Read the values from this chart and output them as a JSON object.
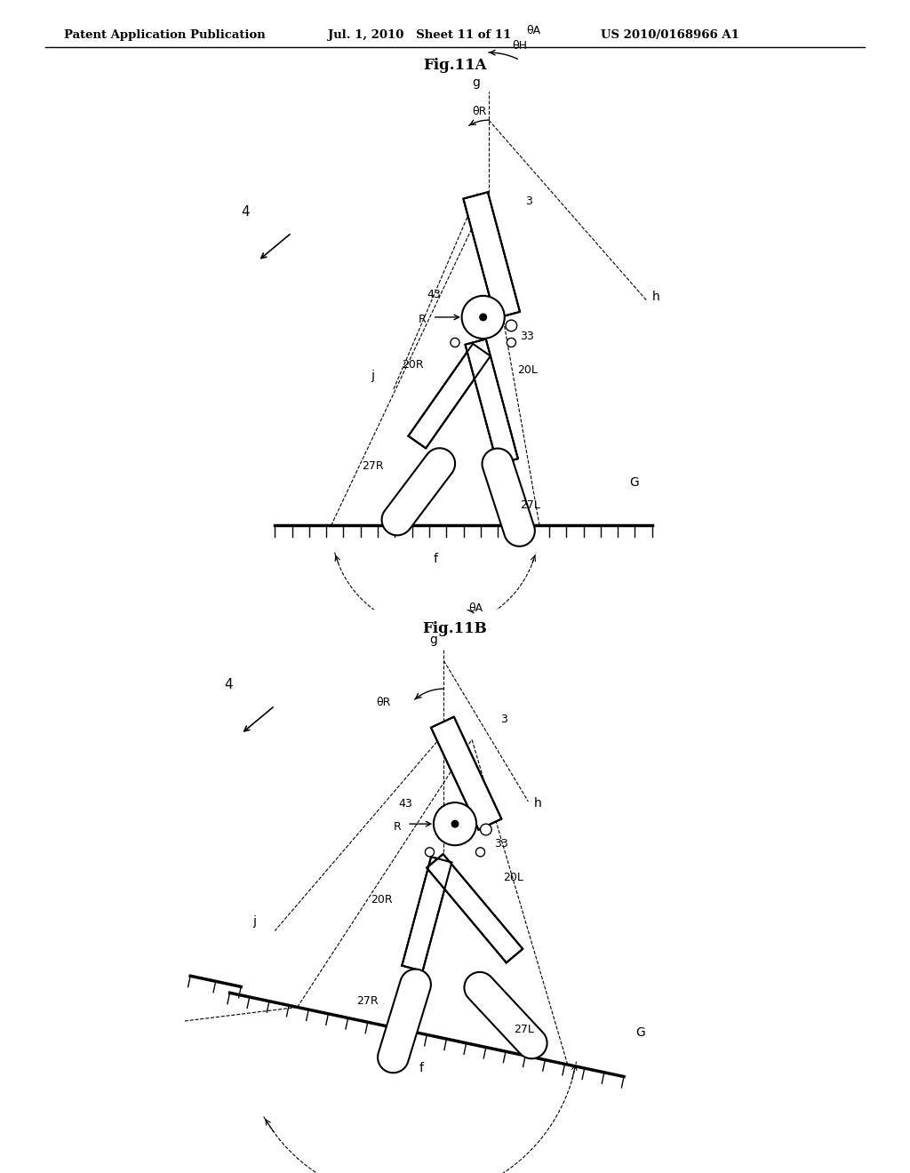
{
  "header_left": "Patent Application Publication",
  "header_mid": "Jul. 1, 2010   Sheet 11 of 11",
  "header_right": "US 2010/0168966 A1",
  "fig_a_title": "Fig.11A",
  "fig_b_title": "Fig.11B",
  "bg_color": "#ffffff"
}
